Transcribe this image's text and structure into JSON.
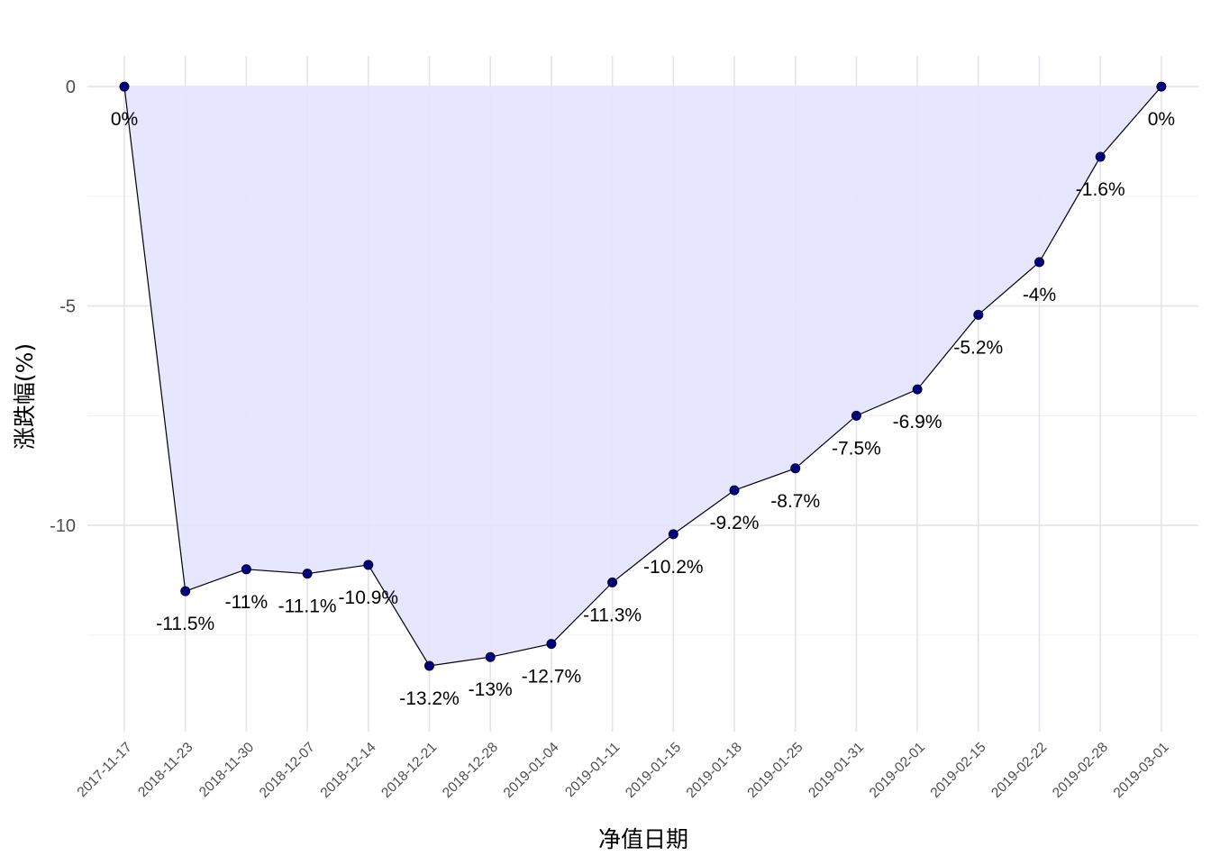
{
  "chart_data": {
    "type": "area",
    "xlabel": "净值日期",
    "ylabel": "涨跌幅(%)",
    "categories": [
      "2017-11-17",
      "2018-11-23",
      "2018-11-30",
      "2018-12-07",
      "2018-12-14",
      "2018-12-21",
      "2018-12-28",
      "2019-01-04",
      "2019-01-11",
      "2019-01-15",
      "2019-01-18",
      "2019-01-25",
      "2019-01-31",
      "2019-02-01",
      "2019-02-15",
      "2019-02-22",
      "2019-02-28",
      "2019-03-01"
    ],
    "values": [
      0,
      -11.5,
      -11,
      -11.1,
      -10.9,
      -13.2,
      -13,
      -12.7,
      -11.3,
      -10.2,
      -9.2,
      -8.7,
      -7.5,
      -6.9,
      -5.2,
      -4,
      -1.6,
      0
    ],
    "labels": [
      "0%",
      "-11.5%",
      "-11%",
      "-11.1%",
      "-10.9%",
      "-13.2%",
      "-13%",
      "-12.7%",
      "-11.3%",
      "-10.2%",
      "-9.2%",
      "-8.7%",
      "-7.5%",
      "-6.9%",
      "-5.2%",
      "-4%",
      "-1.6%",
      "0%"
    ],
    "yticks": [
      0,
      -5,
      -10
    ],
    "ytick_labels": [
      "0",
      "-5",
      "-10"
    ],
    "ylim": [
      -14.7,
      0.7
    ],
    "grid": true,
    "colors": {
      "fill": "#e4e4ff",
      "line": "#000000",
      "point": "#00007f",
      "grid_major": "#e3e3ea",
      "grid_minor": "#f0f0f4"
    }
  }
}
